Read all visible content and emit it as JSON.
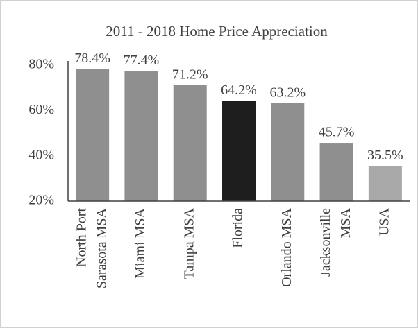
{
  "chart_data": {
    "type": "bar",
    "title": "2011 - 2018 Home Price Appreciation",
    "categories": [
      "North Port\nSarasota MSA",
      "Miami MSA",
      "Tampa MSA",
      "Florida",
      "Orlando MSA",
      "Jacksonville\nMSA",
      "USA"
    ],
    "values": [
      78.4,
      77.4,
      71.2,
      64.2,
      63.2,
      45.7,
      35.5
    ],
    "value_labels": [
      "78.4%",
      "77.4%",
      "71.2%",
      "64.2%",
      "63.2%",
      "45.7%",
      "35.5%"
    ],
    "colors": [
      "#8f8f8f",
      "#8f8f8f",
      "#8f8f8f",
      "#1e1e1e",
      "#8f8f8f",
      "#8f8f8f",
      "#a8a8a8"
    ],
    "ylim": [
      20,
      80
    ],
    "yticks": [
      {
        "value": 20,
        "label": "20%"
      },
      {
        "value": 40,
        "label": "40%"
      },
      {
        "value": 60,
        "label": "60%"
      },
      {
        "value": 80,
        "label": "80%"
      }
    ],
    "grid": false
  }
}
